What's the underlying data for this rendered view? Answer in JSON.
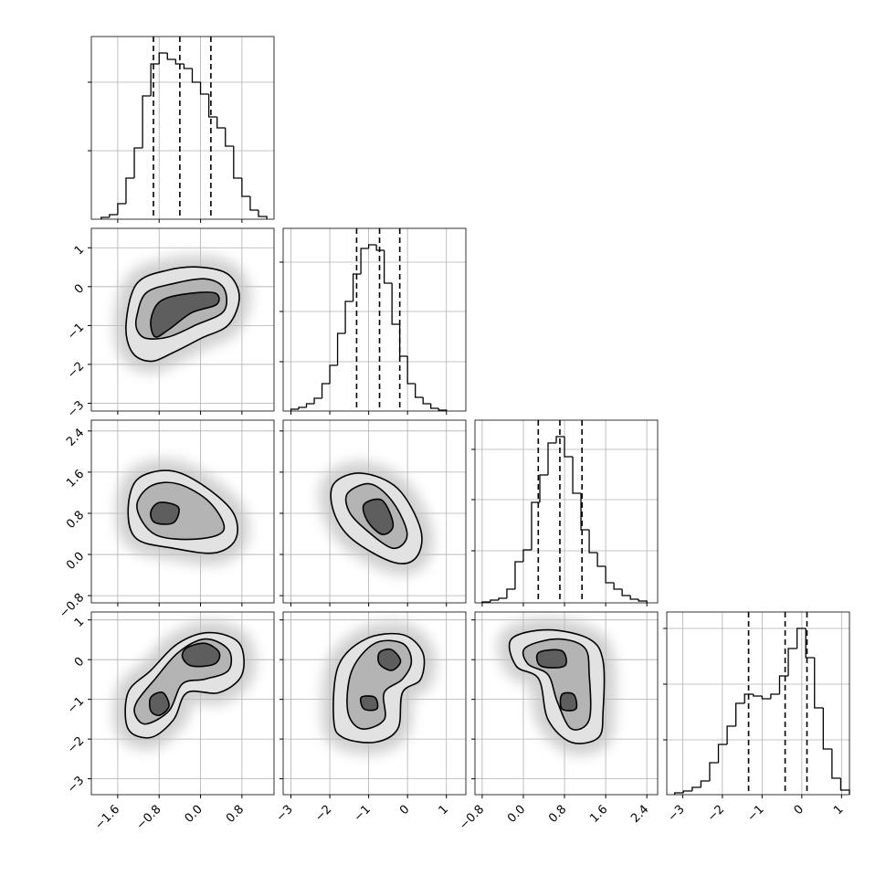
{
  "chart_data": {
    "type": "corner",
    "grid": true,
    "hist_color": "#000000",
    "contour_fills": [
      "#e2e2e2",
      "#b4b4b4",
      "#5e5e5e"
    ],
    "params": [
      {
        "lim": [
          -2.11,
          1.42
        ],
        "ticks": [
          {
            "value": -1.6,
            "label": "−1.6"
          },
          {
            "value": -0.8,
            "label": "−0.8"
          },
          {
            "value": 0,
            "label": "0.0"
          },
          {
            "value": 0.8,
            "label": "0.8"
          }
        ],
        "bins": [
          -1.92,
          -1.76,
          -1.6,
          -1.44,
          -1.28,
          -1.12,
          -0.96,
          -0.8,
          -0.64,
          -0.48,
          -0.32,
          -0.16,
          0,
          0.16,
          0.32,
          0.48,
          0.64,
          0.8,
          0.96,
          1.12,
          1.28
        ],
        "counts": [
          2,
          5,
          17,
          45,
          78,
          135,
          170,
          182,
          175,
          170,
          165,
          150,
          137,
          112,
          100,
          80,
          45,
          25,
          10,
          3
        ],
        "quantiles": [
          -0.91,
          -0.4,
          0.2
        ],
        "hist_ylim": [
          0,
          200
        ],
        "hist_yticks": [
          75,
          150
        ]
      },
      {
        "lim": [
          -3.2,
          1.5
        ],
        "ticks": [
          {
            "value": -3,
            "label": "−3"
          },
          {
            "value": -2,
            "label": "−2"
          },
          {
            "value": -1,
            "label": "−1"
          },
          0,
          1
        ],
        "bins": [
          -3,
          -2.8,
          -2.6,
          -2.4,
          -2.2,
          -2,
          -1.8,
          -1.6,
          -1.4,
          -1.2,
          -1,
          -0.8,
          -0.6,
          -0.4,
          -0.2,
          0,
          0.2,
          0.4,
          0.6,
          0.8,
          1
        ],
        "counts": [
          2,
          4,
          8,
          14,
          30,
          50,
          85,
          120,
          150,
          178,
          182,
          176,
          140,
          95,
          60,
          30,
          15,
          8,
          3,
          1
        ],
        "quantiles": [
          -1.31,
          -0.72,
          -0.2
        ],
        "hist_ylim": [
          0,
          200
        ],
        "hist_yticks": [
          54,
          109,
          163
        ]
      },
      {
        "lim": [
          -0.94,
          2.61
        ],
        "ticks": [
          {
            "value": -0.8,
            "label": "−0.8"
          },
          {
            "value": 0,
            "label": "0.0"
          },
          0.8,
          1.6,
          2.4
        ],
        "bins": [
          -0.8,
          -0.64,
          -0.48,
          -0.32,
          -0.16,
          0,
          0.16,
          0.32,
          0.48,
          0.64,
          0.8,
          0.96,
          1.12,
          1.28,
          1.44,
          1.6,
          1.76,
          1.92,
          2.08,
          2.24,
          2.4
        ],
        "counts": [
          1,
          3,
          5,
          15,
          45,
          58,
          110,
          140,
          175,
          182,
          160,
          120,
          80,
          55,
          40,
          22,
          15,
          8,
          4,
          2
        ],
        "quantiles": [
          0.29,
          0.71,
          1.14
        ],
        "hist_ylim": [
          0,
          200
        ],
        "hist_yticks": [
          57,
          113,
          168
        ]
      },
      {
        "lim": [
          -3.4,
          1.2
        ],
        "ticks": [
          {
            "value": -3,
            "label": "−3"
          },
          {
            "value": -2,
            "label": "−2"
          },
          {
            "value": -1,
            "label": "−1"
          },
          0,
          1
        ],
        "bins": [
          -3.2,
          -2.98,
          -2.76,
          -2.54,
          -2.32,
          -2.1,
          -1.88,
          -1.66,
          -1.44,
          -1.22,
          -1,
          -0.78,
          -0.56,
          -0.34,
          -0.12,
          0.1,
          0.32,
          0.54,
          0.76,
          0.98,
          1.2
        ],
        "counts": [
          2,
          4,
          8,
          15,
          35,
          55,
          75,
          100,
          110,
          108,
          105,
          110,
          130,
          160,
          182,
          150,
          95,
          50,
          18,
          5
        ],
        "quantiles": [
          -1.34,
          -0.42,
          0.13
        ],
        "hist_ylim": [
          0,
          200
        ],
        "hist_yticks": [
          60,
          121,
          182
        ]
      }
    ],
    "panels": [
      [
        {
          "levels": [
            [
              {
                "x": [
                  -1.44,
                  -1.23,
                  -0.61,
                  0.01,
                  0.54,
                  0.75,
                  0.54,
                  0.01,
                  -0.52,
                  -0.96,
                  -1.32
                ],
                "y": [
                  -0.98,
                  0.08,
                  0.43,
                  0.5,
                  0.31,
                  -0.27,
                  -0.98,
                  -1.33,
                  -1.69,
                  -1.92,
                  -1.69
                ]
              }
            ],
            [
              {
                "x": [
                  -1.23,
                  -1.05,
                  -0.52,
                  0.09,
                  0.45,
                  0.45,
                  -0.08,
                  -0.61,
                  -1.05,
                  -1.23
                ],
                "y": [
                  -0.75,
                  -0.16,
                  0.08,
                  0.2,
                  -0.04,
                  -0.63,
                  -0.98,
                  -1.29,
                  -1.33,
                  -1.1
                ]
              }
            ],
            [
              {
                "x": [
                  -0.96,
                  -0.79,
                  -0.35,
                  0.27,
                  0.31,
                  -0.17,
                  -0.61,
                  -0.88
                ],
                "y": [
                  -0.86,
                  -0.39,
                  -0.2,
                  -0.16,
                  -0.46,
                  -0.67,
                  -1.1,
                  -1.29
                ]
              }
            ]
          ]
        }
      ],
      [
        {
          "levels": [
            [
              {
                "x": [
                  -1.4,
                  -1.23,
                  -0.61,
                  0.01,
                  0.62,
                  0.68,
                  0.27,
                  -0.52,
                  -1.23
                ],
                "y": [
                  0.83,
                  1.45,
                  1.63,
                  1.37,
                  0.83,
                  0.3,
                  0.03,
                  0.12,
                  0.3
                ]
              }
            ],
            [
              {
                "x": [
                  -1.23,
                  -0.96,
                  -0.43,
                  0.18,
                  0.45,
                  -0.08,
                  -0.88
                ],
                "y": [
                  0.92,
                  1.33,
                  1.37,
                  1.01,
                  0.48,
                  0.3,
                  0.39
                ]
              }
            ],
            [
              {
                "x": [
                  -0.96,
                  -0.79,
                  -0.43,
                  -0.52,
                  -0.88
                ],
                "y": [
                  0.83,
                  1.01,
                  0.92,
                  0.62,
                  0.62
                ]
              }
            ]
          ]
        },
        {
          "levels": [
            [
              {
                "x": [
                  -1.9,
                  -1.19,
                  -0.25,
                  0.34,
                  0.22,
                  -0.37,
                  -1.43,
                  -1.9
                ],
                "y": [
                  1.37,
                  1.58,
                  1.28,
                  0.48,
                  -0.06,
                  -0.15,
                  0.3,
                  0.83
                ]
              }
            ],
            [
              {
                "x": [
                  -1.54,
                  -0.95,
                  -0.37,
                  -0.01,
                  -0.37,
                  -1.07,
                  -1.5
                ],
                "y": [
                  1.19,
                  1.37,
                  1.01,
                  0.39,
                  0.12,
                  0.48,
                  0.83
                ]
              }
            ],
            [
              {
                "x": [
                  -1.12,
                  -0.65,
                  -0.37,
                  -0.65,
                  -1.03
                ],
                "y": [
                  0.97,
                  1.05,
                  0.57,
                  0.39,
                  0.65
                ]
              }
            ]
          ]
        }
      ],
      [
        {
          "levels": [
            [
              {
                "x": [
                  -1.4,
                  -0.96,
                  -0.43,
                  0.18,
                  0.75,
                  0.8,
                  0.36,
                  -0.26,
                  -0.52,
                  -0.96,
                  -1.4
                ],
                "y": [
                  -0.83,
                  -0.27,
                  0.41,
                  0.68,
                  0.41,
                  -0.38,
                  -0.83,
                  -0.83,
                  -1.51,
                  -1.96,
                  -1.74
                ]
              }
            ],
            [
              {
                "x": [
                  -1.23,
                  -0.88,
                  -0.43,
                  0.09,
                  0.54,
                  0.54,
                  0.09,
                  -0.35,
                  -0.61,
                  -1.05,
                  -1.26
                ],
                "y": [
                  -1.06,
                  -0.49,
                  0.18,
                  0.52,
                  0.25,
                  -0.27,
                  -0.49,
                  -0.61,
                  -1.29,
                  -1.62,
                  -1.4
                ]
              }
            ],
            [
              {
                "x": [
                  -0.26,
                  0.09,
                  0.36,
                  0.27,
                  -0.17,
                  -0.35
                ],
                "y": [
                  0.3,
                  0.41,
                  0.18,
                  -0.11,
                  -0.16,
                  0.07
                ]
              },
              {
                "x": [
                  -0.96,
                  -0.73,
                  -0.61,
                  -0.79,
                  -0.96
                ],
                "y": [
                  -0.95,
                  -0.83,
                  -1.17,
                  -1.4,
                  -1.29
                ]
              }
            ]
          ]
        },
        {
          "levels": [
            [
              {
                "x": [
                  -1.9,
                  -1.78,
                  -1.07,
                  -0.13,
                  0.39,
                  0.34,
                  -0.13,
                  -0.25,
                  -0.84,
                  -1.66
                ],
                "y": [
                  -1.51,
                  -0.16,
                  0.52,
                  0.63,
                  0.18,
                  -0.49,
                  -0.83,
                  -1.74,
                  -2.08,
                  -1.96
                ]
              }
            ],
            [
              {
                "x": [
                  -1.54,
                  -1.43,
                  -0.84,
                  -0.13,
                  0.1,
                  -0.13,
                  -0.6,
                  -0.6,
                  -1.19
                ],
                "y": [
                  -1.29,
                  -0.27,
                  0.41,
                  0.41,
                  -0.04,
                  -0.49,
                  -0.83,
                  -1.51,
                  -1.74
                ]
              }
            ],
            [
              {
                "x": [
                  -0.72,
                  -0.41,
                  -0.18,
                  -0.41,
                  -0.72
                ],
                "y": [
                  0.18,
                  0.25,
                  -0.04,
                  -0.27,
                  -0.11
                ]
              },
              {
                "x": [
                  -1.19,
                  -0.84,
                  -0.79,
                  -1.12
                ],
                "y": [
                  -0.95,
                  -0.95,
                  -1.24,
                  -1.24
                ]
              }
            ]
          ]
        },
        {
          "levels": [
            [
              {
                "x": [
                  -0.23,
                  0.48,
                  1.28,
                  1.55,
                  1.55,
                  1.46,
                  0.93,
                  0.48,
                  0.3,
                  -0.14
                ],
                "y": [
                  0.52,
                  0.75,
                  0.52,
                  -0.04,
                  -1.29,
                  -1.96,
                  -2.08,
                  -1.51,
                  -0.49,
                  -0.16
                ]
              }
            ],
            [
              {
                "x": [
                  0.04,
                  0.66,
                  1.19,
                  1.28,
                  1.28,
                  0.93,
                  0.66,
                  0.48,
                  0.09
                ],
                "y": [
                  0.3,
                  0.52,
                  0.3,
                  -0.38,
                  -1.51,
                  -1.74,
                  -1.06,
                  -0.38,
                  -0.11
                ]
              }
            ],
            [
              {
                "x": [
                  0.3,
                  0.75,
                  0.8,
                  0.34
                ],
                "y": [
                  0.18,
                  0.22,
                  -0.16,
                  -0.16
                ]
              },
              {
                "x": [
                  0.75,
                  0.98,
                  1.02,
                  0.75
                ],
                "y": [
                  -0.88,
                  -0.88,
                  -1.24,
                  -1.24
                ]
              }
            ]
          ]
        }
      ]
    ]
  }
}
